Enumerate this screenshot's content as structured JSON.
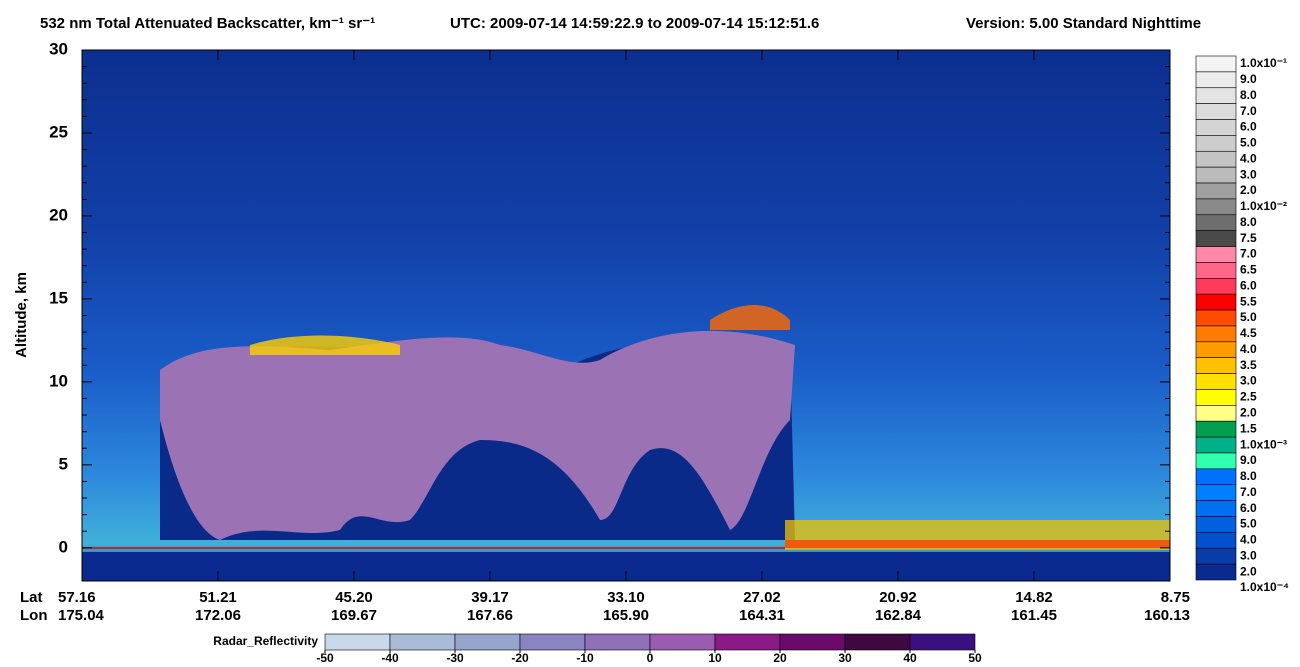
{
  "chart_data": {
    "type": "heatmap",
    "title": "532 nm Total Attenuated Backscatter, km⁻¹ sr⁻¹",
    "time_range": "UTC:  2009-07-14 14:59:22.9  to  2009-07-14 15:12:51.6",
    "version": "Version: 5.00  Standard  Nighttime",
    "y_label": "Altitude, km",
    "ylim": [
      -2,
      30
    ],
    "yticks": [
      0,
      5,
      10,
      15,
      20,
      25,
      30
    ],
    "x_rows": [
      {
        "name": "Lat",
        "labels": [
          "57.16",
          "51.21",
          "45.20",
          "39.17",
          "33.10",
          "27.02",
          "20.92",
          "14.82",
          "8.75"
        ]
      },
      {
        "name": "Lon",
        "labels": [
          "175.04",
          "172.06",
          "169.67",
          "167.66",
          "165.90",
          "164.31",
          "162.84",
          "161.45",
          "160.13"
        ]
      }
    ],
    "colorbar": {
      "labels": [
        "1.0x10⁻¹",
        "9.0",
        "8.0",
        "7.0",
        "6.0",
        "5.0",
        "4.0",
        "3.0",
        "2.0",
        "1.0x10⁻²",
        "8.0",
        "7.5",
        "7.0",
        "6.5",
        "6.0",
        "5.5",
        "5.0",
        "4.5",
        "4.0",
        "3.5",
        "3.0",
        "2.5",
        "2.0",
        "1.5",
        "1.0x10⁻³",
        "9.0",
        "8.0",
        "7.0",
        "6.0",
        "5.0",
        "4.0",
        "3.0",
        "2.0",
        "1.0x10⁻⁴"
      ],
      "colors": [
        "#ffffff",
        "#f4f4f4",
        "#ececec",
        "#e4e4e4",
        "#dcdcdc",
        "#d4d4d4",
        "#cccccc",
        "#c4c4c4",
        "#bbbbbb",
        "#a0a0a0",
        "#8a8a8a",
        "#6e6e6e",
        "#4a4a4a",
        "#ff88a8",
        "#ff6688",
        "#ff3a5a",
        "#ff0000",
        "#ff4a00",
        "#ff7a00",
        "#ff9a00",
        "#ffc000",
        "#ffe000",
        "#ffff00",
        "#ffff88",
        "#00a050",
        "#00b088",
        "#30ffb0",
        "#0070ff",
        "#0080ff",
        "#0070f0",
        "#0060e0",
        "#0050d0",
        "#083ca8",
        "#0a2a90"
      ]
    },
    "radar_colorbar": {
      "label": "Radar_Reflectivity",
      "lim": [
        -50,
        50
      ],
      "ticks": [
        -50,
        -40,
        -30,
        -20,
        -10,
        0,
        10,
        20,
        30,
        40,
        50
      ],
      "colors": [
        "#c8d8ea",
        "#a8bcd8",
        "#94a6cc",
        "#8a84c0",
        "#9070b8",
        "#9a5cb0",
        "#8a1a88",
        "#6a0a6a",
        "#400840",
        "#3a1080"
      ]
    }
  }
}
